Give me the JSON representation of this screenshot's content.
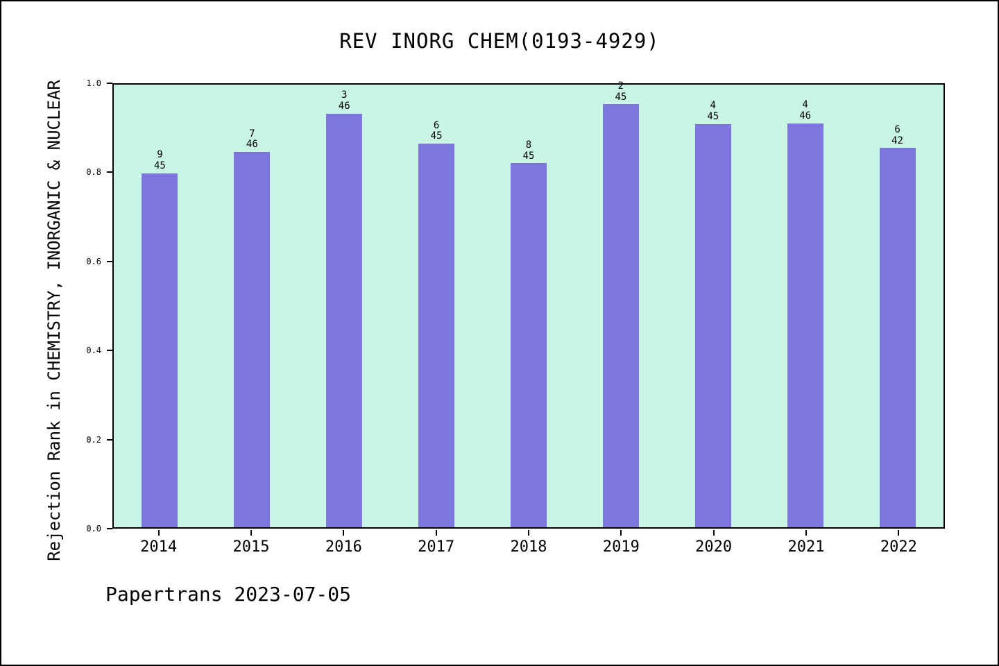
{
  "footer": "Papertrans 2023-07-05",
  "chart_data": {
    "type": "bar",
    "title": "REV INORG CHEM(0193-4929)",
    "xlabel": "",
    "ylabel": "Rejection Rank in CHEMISTRY, INORGANIC & NUCLEAR",
    "categories": [
      "2014",
      "2015",
      "2016",
      "2017",
      "2018",
      "2019",
      "2020",
      "2021",
      "2022"
    ],
    "values": [
      0.8,
      0.8478,
      0.9348,
      0.8667,
      0.8222,
      0.9556,
      0.9111,
      0.913,
      0.8571
    ],
    "annotations": [
      {
        "rank": "9",
        "total": "45"
      },
      {
        "rank": "7",
        "total": "46"
      },
      {
        "rank": "3",
        "total": "46"
      },
      {
        "rank": "6",
        "total": "45"
      },
      {
        "rank": "8",
        "total": "45"
      },
      {
        "rank": "2",
        "total": "45"
      },
      {
        "rank": "4",
        "total": "45"
      },
      {
        "rank": "4",
        "total": "46"
      },
      {
        "rank": "6",
        "total": "42"
      }
    ],
    "ylim": [
      0.0,
      1.0
    ],
    "yticks": [
      0.0,
      0.2,
      0.4,
      0.6,
      0.8,
      1.0
    ],
    "grid": false,
    "legend": "none",
    "colors": {
      "bar": "#7d76de",
      "plot_background": "#c8f5e6",
      "page_background": "#ffffff",
      "frame": "#000000",
      "text": "#000000"
    }
  }
}
